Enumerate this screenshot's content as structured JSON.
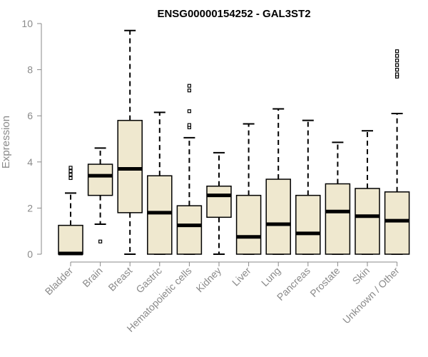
{
  "chart_data": {
    "type": "box",
    "title": "ENSG00000154252 - GAL3ST2",
    "xlabel": "",
    "ylabel": "Expression",
    "ylim": [
      0,
      10
    ],
    "yticks": [
      0,
      2,
      4,
      6,
      8,
      10
    ],
    "grid": false,
    "colors": {
      "box_fill": "#efe8cf",
      "box_stroke": "#000000",
      "axis": "#8a8a8a"
    },
    "categories": [
      "Bladder",
      "Brain",
      "Breast",
      "Gastric",
      "Hematopoietic cells",
      "Kidney",
      "Liver",
      "Lung",
      "Pancreas",
      "Prostate",
      "Skin",
      "Unknown / Other"
    ],
    "boxes": [
      {
        "category": "Bladder",
        "lower_whisker": 0.0,
        "q1": 0.0,
        "median": 0.03,
        "q3": 1.25,
        "upper_whisker": 2.65,
        "outliers": [
          3.3,
          3.45,
          3.6,
          3.75
        ]
      },
      {
        "category": "Brain",
        "lower_whisker": 1.3,
        "q1": 2.55,
        "median": 3.4,
        "q3": 3.9,
        "upper_whisker": 4.6,
        "outliers": [
          0.55
        ]
      },
      {
        "category": "Breast",
        "lower_whisker": 0.0,
        "q1": 1.8,
        "median": 3.7,
        "q3": 5.8,
        "upper_whisker": 9.7,
        "outliers": []
      },
      {
        "category": "Gastric",
        "lower_whisker": 0.0,
        "q1": 0.0,
        "median": 1.8,
        "q3": 3.4,
        "upper_whisker": 6.15,
        "outliers": []
      },
      {
        "category": "Hematopoietic cells",
        "lower_whisker": 0.0,
        "q1": 0.0,
        "median": 1.25,
        "q3": 2.1,
        "upper_whisker": 5.05,
        "outliers": [
          5.5,
          5.6,
          6.2,
          7.1,
          7.3
        ]
      },
      {
        "category": "Kidney",
        "lower_whisker": 0.0,
        "q1": 1.6,
        "median": 2.55,
        "q3": 2.95,
        "upper_whisker": 4.4,
        "outliers": []
      },
      {
        "category": "Liver",
        "lower_whisker": 0.0,
        "q1": 0.0,
        "median": 0.75,
        "q3": 2.55,
        "upper_whisker": 5.65,
        "outliers": []
      },
      {
        "category": "Lung",
        "lower_whisker": 0.0,
        "q1": 0.0,
        "median": 1.3,
        "q3": 3.25,
        "upper_whisker": 6.3,
        "outliers": []
      },
      {
        "category": "Pancreas",
        "lower_whisker": 0.0,
        "q1": 0.0,
        "median": 0.9,
        "q3": 2.55,
        "upper_whisker": 5.8,
        "outliers": []
      },
      {
        "category": "Prostate",
        "lower_whisker": 0.0,
        "q1": 0.0,
        "median": 1.85,
        "q3": 3.05,
        "upper_whisker": 4.85,
        "outliers": []
      },
      {
        "category": "Skin",
        "lower_whisker": 0.0,
        "q1": 0.0,
        "median": 1.65,
        "q3": 2.85,
        "upper_whisker": 5.35,
        "outliers": []
      },
      {
        "category": "Unknown / Other",
        "lower_whisker": 0.0,
        "q1": 0.0,
        "median": 1.45,
        "q3": 2.7,
        "upper_whisker": 6.1,
        "outliers": [
          7.7,
          7.8,
          8.0,
          8.2,
          8.4,
          8.6,
          8.8
        ]
      }
    ]
  }
}
